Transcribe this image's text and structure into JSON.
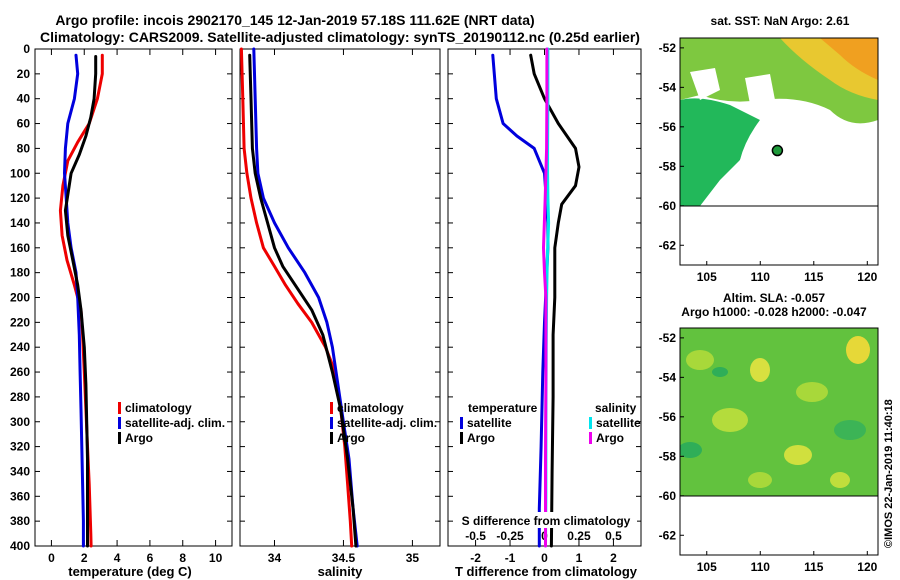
{
  "header": {
    "line1": "Argo profile: incois 2902170_145 12-Jan-2019 57.18S 111.62E (NRT data)",
    "line2": "Climatology: CARS2009. Satellite-adjusted climatology: synTS_20190112.nc (0.25d earlier)"
  },
  "colors": {
    "climatology": "#ee0000",
    "satellite": "#0000dd",
    "argo": "#000000",
    "sat_salinity": "#00e5ee",
    "argo_salinity": "#ee00ee"
  },
  "legend_temp": {
    "climatology": "climatology",
    "satellite": "satellite-adj. clim.",
    "argo": "Argo"
  },
  "legend_sal": {
    "climatology": "climatology",
    "satellite": "satellite-adj. clim.",
    "argo": "Argo"
  },
  "legend_diff": {
    "temperature_head": "temperature",
    "salinity_head": "salinity",
    "t_satellite": "satellite",
    "t_argo": "Argo",
    "s_satellite": "satellite",
    "s_argo": "Argo"
  },
  "map_sst": {
    "title": "sat. SST: NaN Argo: 2.61",
    "icon": "argo-float-marker-icon"
  },
  "map_sla": {
    "title1": "Altim. SLA: -0.057",
    "title2": "Argo h1000: -0.028 h2000: -0.047"
  },
  "credit": "©IMOS 22-Jan-2019 11:40:18",
  "chart_data": [
    {
      "type": "line",
      "id": "temperature",
      "xlabel": "temperature (deg C)",
      "ylabel": "",
      "xlim": [
        -1,
        11
      ],
      "ylim": [
        400,
        0
      ],
      "xticks": [
        0,
        2,
        4,
        6,
        8,
        10
      ],
      "yticks": [
        0,
        20,
        40,
        60,
        80,
        100,
        120,
        140,
        160,
        180,
        200,
        220,
        240,
        260,
        280,
        300,
        320,
        340,
        360,
        380,
        400
      ],
      "series": [
        {
          "name": "climatology",
          "color": "#ee0000",
          "x": [
            3.1,
            3.1,
            2.8,
            2.3,
            1.6,
            1.0,
            0.7,
            0.55,
            0.65,
            0.95,
            1.4,
            1.8,
            1.9,
            2.0,
            2.1,
            2.2,
            2.3,
            2.35,
            2.4,
            2.42
          ],
          "y": [
            5,
            20,
            40,
            60,
            75,
            90,
            110,
            130,
            150,
            170,
            190,
            210,
            230,
            260,
            290,
            320,
            350,
            370,
            390,
            400
          ]
        },
        {
          "name": "satellite-adj. clim.",
          "color": "#0000dd",
          "x": [
            1.5,
            1.6,
            1.4,
            1.0,
            0.85,
            0.8,
            0.9,
            1.0,
            1.2,
            1.5,
            1.6,
            1.7,
            1.75,
            1.8,
            1.85,
            1.9,
            1.95,
            1.95
          ],
          "y": [
            5,
            20,
            40,
            60,
            80,
            100,
            120,
            140,
            160,
            180,
            200,
            230,
            260,
            290,
            320,
            350,
            380,
            400
          ]
        },
        {
          "name": "Argo",
          "color": "#000000",
          "x": [
            2.7,
            2.7,
            2.6,
            2.4,
            2.1,
            1.7,
            1.2,
            0.85,
            1.0,
            1.3,
            1.6,
            1.8,
            2.0,
            2.1,
            2.15,
            2.2,
            2.2,
            2.2
          ],
          "y": [
            6,
            20,
            40,
            55,
            70,
            85,
            100,
            130,
            150,
            170,
            190,
            210,
            240,
            270,
            300,
            330,
            360,
            400
          ]
        }
      ]
    },
    {
      "type": "line",
      "id": "salinity",
      "xlabel": "salinity",
      "ylabel": "",
      "xlim": [
        33.75,
        35.2
      ],
      "ylim": [
        400,
        0
      ],
      "xticks": [
        34,
        34.5,
        35
      ],
      "xtick_labels": [
        "34",
        "34.5",
        "35"
      ],
      "series": [
        {
          "name": "climatology",
          "color": "#ee0000",
          "x": [
            33.76,
            33.77,
            33.78,
            33.8,
            33.83,
            33.87,
            33.92,
            34.0,
            34.08,
            34.17,
            34.27,
            34.37,
            34.44,
            34.47,
            34.49,
            34.51,
            34.53,
            34.55,
            34.56
          ],
          "y": [
            0,
            40,
            80,
            100,
            120,
            140,
            160,
            175,
            190,
            205,
            220,
            240,
            260,
            280,
            300,
            320,
            350,
            380,
            400
          ]
        },
        {
          "name": "satellite-adj. clim.",
          "color": "#0000dd",
          "x": [
            33.85,
            33.86,
            33.87,
            33.88,
            33.92,
            34.0,
            34.1,
            34.22,
            34.32,
            34.38,
            34.42,
            34.46,
            34.5,
            34.54,
            34.57,
            34.6
          ],
          "y": [
            0,
            40,
            80,
            100,
            120,
            140,
            160,
            180,
            200,
            220,
            240,
            270,
            300,
            330,
            370,
            400
          ]
        },
        {
          "name": "Argo",
          "color": "#000000",
          "x": [
            33.82,
            33.83,
            33.84,
            33.86,
            33.9,
            33.95,
            34.0,
            34.06,
            34.15,
            34.27,
            34.35,
            34.42,
            34.48,
            34.53,
            34.57,
            34.59
          ],
          "y": [
            5,
            40,
            80,
            100,
            120,
            140,
            160,
            175,
            190,
            210,
            230,
            260,
            290,
            330,
            370,
            400
          ]
        }
      ]
    },
    {
      "type": "line",
      "id": "difference",
      "xlabel": "T difference from climatology",
      "xlabel2": "S difference from climatology",
      "xlim": [
        -2.8,
        2.8
      ],
      "ylim": [
        400,
        0
      ],
      "xticks": [
        -2,
        -1,
        0,
        1,
        2
      ],
      "xticks2": [
        -0.5,
        -0.25,
        0,
        0.25,
        0.5
      ],
      "x2_scale": 4,
      "series": [
        {
          "name": "temperature satellite",
          "color": "#0000dd",
          "x": [
            -1.5,
            -1.4,
            -1.2,
            -0.8,
            -0.3,
            0.0,
            0.05,
            0.1,
            0.1,
            0.05,
            0.0,
            -0.05,
            -0.1,
            -0.15,
            -0.15
          ],
          "y": [
            5,
            40,
            60,
            70,
            80,
            100,
            120,
            140,
            160,
            190,
            220,
            260,
            320,
            370,
            400
          ]
        },
        {
          "name": "temperature Argo",
          "color": "#000000",
          "x": [
            -0.4,
            -0.3,
            0.0,
            0.4,
            0.9,
            1.0,
            0.9,
            0.5,
            0.4,
            0.3,
            0.3,
            0.3,
            0.25,
            0.25,
            0.22,
            0.2
          ],
          "y": [
            5,
            20,
            40,
            60,
            80,
            95,
            110,
            125,
            140,
            160,
            180,
            200,
            230,
            280,
            340,
            400
          ]
        },
        {
          "name": "salinity satellite",
          "color": "#00e5ee",
          "x": [
            0.1,
            0.1,
            0.09,
            0.09,
            0.1,
            0.12,
            0.08,
            0.06,
            0.05,
            0.04,
            0.04,
            0.03
          ],
          "y": [
            0,
            40,
            80,
            100,
            120,
            140,
            170,
            200,
            240,
            300,
            360,
            400
          ]
        },
        {
          "name": "salinity Argo",
          "color": "#ee00ee",
          "x": [
            0.07,
            0.07,
            0.06,
            0.02,
            -0.03,
            0.0,
            0.04,
            0.04,
            0.03,
            0.03
          ],
          "y": [
            0,
            40,
            80,
            120,
            160,
            180,
            200,
            260,
            330,
            400
          ]
        }
      ]
    },
    {
      "type": "heatmap",
      "id": "sst-map",
      "title": "sat. SST: NaN Argo: 2.61",
      "xlim": [
        102.5,
        121
      ],
      "ylim": [
        -63,
        -51.5
      ],
      "xticks": [
        105,
        110,
        115,
        120
      ],
      "yticks": [
        -52,
        -54,
        -56,
        -58,
        -60,
        -62
      ],
      "marker": {
        "lon": 111.6,
        "lat": -57.2
      }
    },
    {
      "type": "heatmap",
      "id": "sla-map",
      "title": "Altim. SLA: -0.057",
      "xlim": [
        102.5,
        121
      ],
      "ylim": [
        -63,
        -51.5
      ],
      "xticks": [
        105,
        110,
        115,
        120
      ],
      "yticks": [
        -52,
        -54,
        -56,
        -58,
        -60,
        -62
      ]
    }
  ]
}
